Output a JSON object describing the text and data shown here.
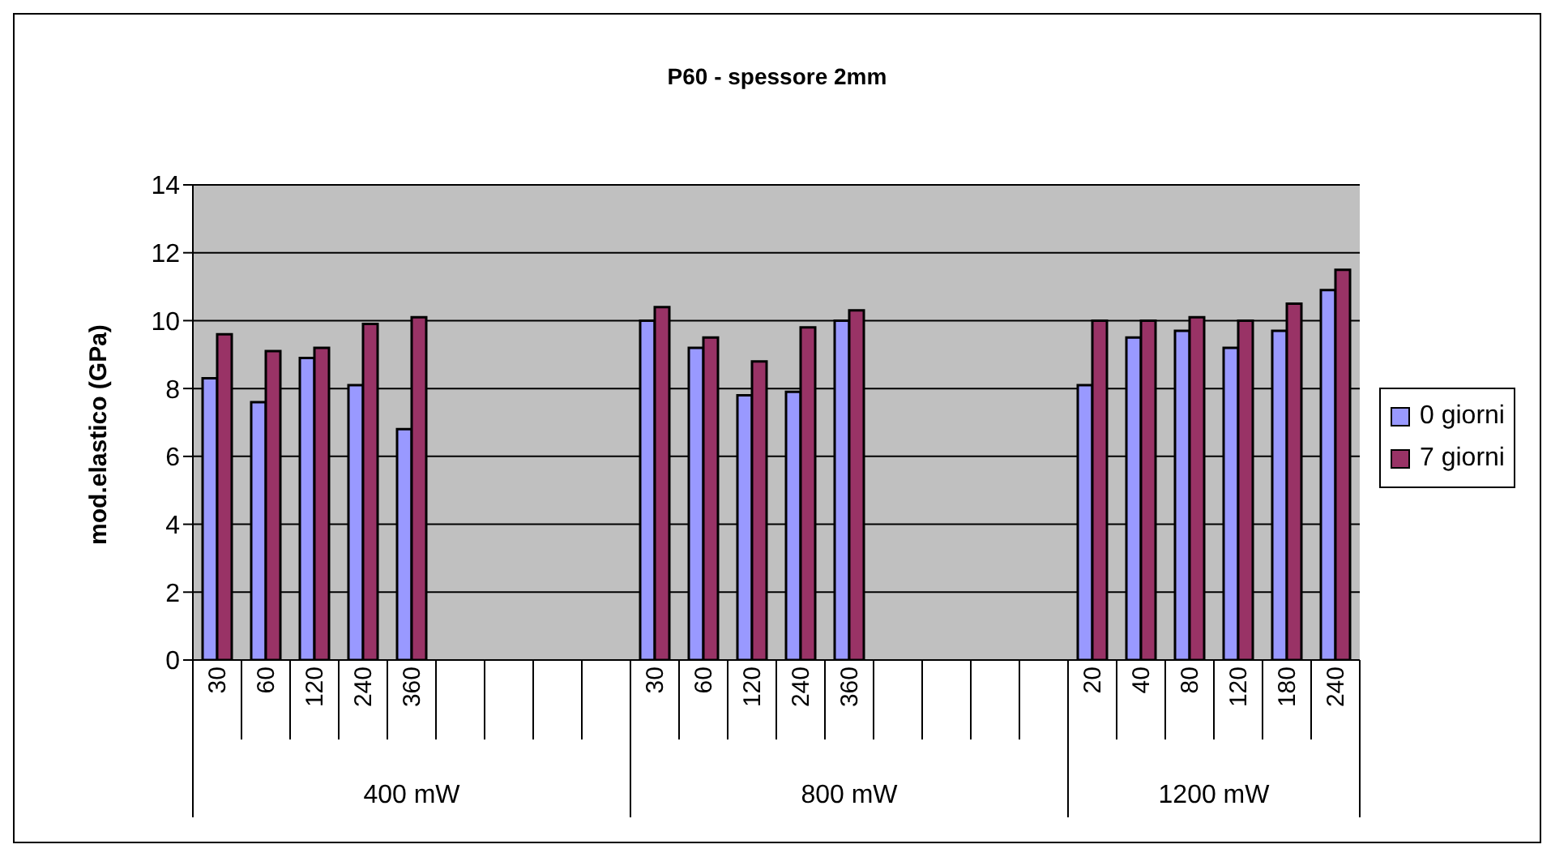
{
  "chart_data": {
    "type": "bar",
    "title": "P60 - spessore 2mm",
    "ylabel": "mod.elastico (GPa)",
    "categories": [
      "30",
      "60",
      "120",
      "240",
      "360",
      null,
      null,
      null,
      null,
      "30",
      "60",
      "120",
      "240",
      "360",
      null,
      null,
      null,
      null,
      "20",
      "40",
      "80",
      "120",
      "180",
      "240"
    ],
    "series": [
      {
        "name": "0 giorni",
        "color": "#9999ff",
        "values": [
          8.3,
          7.6,
          8.9,
          8.1,
          6.8,
          null,
          null,
          null,
          null,
          10.0,
          9.2,
          7.8,
          7.9,
          10.0,
          null,
          null,
          null,
          null,
          8.1,
          9.5,
          9.7,
          9.2,
          9.7,
          10.9
        ]
      },
      {
        "name": "7 giorni",
        "color": "#993366",
        "values": [
          9.6,
          9.1,
          9.2,
          9.9,
          10.1,
          null,
          null,
          null,
          null,
          10.4,
          9.5,
          8.8,
          9.8,
          10.3,
          null,
          null,
          null,
          null,
          10.0,
          10.0,
          10.1,
          10.0,
          10.5,
          11.5
        ]
      }
    ],
    "annotations": [
      "400 mW",
      "800 mW",
      "1200 mW"
    ],
    "ylim": [
      0,
      14
    ],
    "yticks": [
      0,
      2,
      4,
      6,
      8,
      10,
      12,
      14
    ],
    "grid": "y",
    "legend": "right"
  }
}
